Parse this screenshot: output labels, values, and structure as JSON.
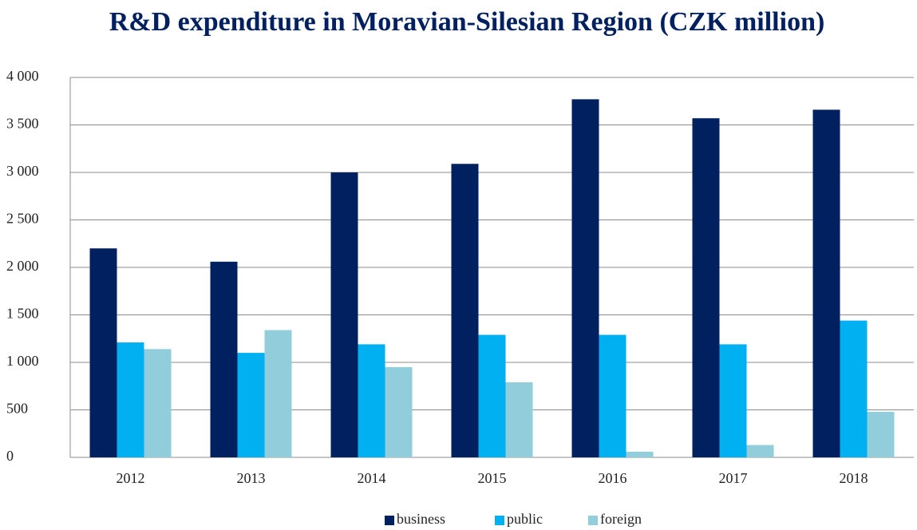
{
  "chart_data": {
    "type": "bar",
    "title": "R&D expenditure in Moravian-Silesian Region (CZK million)",
    "categories": [
      "2012",
      "2013",
      "2014",
      "2015",
      "2016",
      "2017",
      "2018"
    ],
    "series": [
      {
        "name": "business",
        "color": "#002060",
        "values": [
          2200,
          2060,
          3000,
          3090,
          3770,
          3570,
          3660
        ]
      },
      {
        "name": "public",
        "color": "#00b0f0",
        "values": [
          1210,
          1100,
          1190,
          1290,
          1290,
          1190,
          1440
        ]
      },
      {
        "name": "foreign",
        "color": "#92cddc",
        "values": [
          1140,
          1340,
          950,
          790,
          60,
          130,
          480
        ]
      }
    ],
    "ylim": [
      0,
      4000
    ],
    "yticks": [
      0,
      500,
      {
        "value": 1000,
        "label": "1 000"
      },
      {
        "value": 1500,
        "label": "1 500"
      },
      {
        "value": 2000,
        "label": "2 000"
      },
      {
        "value": 2500,
        "label": "2 500"
      },
      {
        "value": 3000,
        "label": "3 000"
      },
      {
        "value": 3500,
        "label": "3 500"
      },
      {
        "value": 4000,
        "label": "4 000"
      }
    ],
    "grid": true,
    "legend": "bottom"
  }
}
